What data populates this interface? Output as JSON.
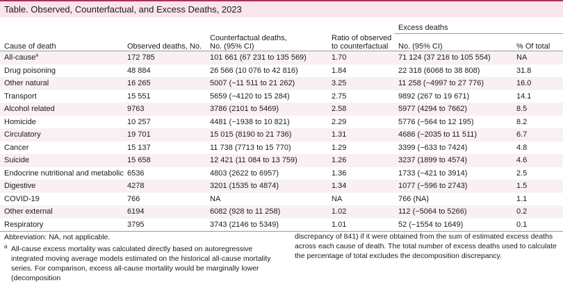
{
  "title": "Table. Observed, Counterfactual, and Excess Deaths, 2023",
  "headers": {
    "cause": "Cause of death",
    "observed": "Observed deaths, No.",
    "counterfactual_line1": "Counterfactual deaths,",
    "counterfactual_line2": "No. (95% CI)",
    "ratio_line1": "Ratio of observed",
    "ratio_line2": "to counterfactual",
    "excess_group": "Excess deaths",
    "excess_no": "No. (95% CI)",
    "excess_pct": "% Of total"
  },
  "rows": [
    {
      "cause": "All-cause",
      "sup": "a",
      "observed": "172 785",
      "counterfactual": "101 661 (67 231 to 135 569)",
      "ratio": "1.70",
      "excess": "71 124 (37 216 to 105 554)",
      "pct": "NA"
    },
    {
      "cause": "Drug poisoning",
      "observed": "48 884",
      "counterfactual": "26 566 (10 076 to 42 816)",
      "ratio": "1.84",
      "excess": "22 318 (6068 to 38 808)",
      "pct": "31.8"
    },
    {
      "cause": "Other natural",
      "observed": "16 265",
      "counterfactual": "5007 (−11 511 to 21 262)",
      "ratio": "3.25",
      "excess": "11 258 (−4997 to 27 776)",
      "pct": "16.0"
    },
    {
      "cause": "Transport",
      "observed": "15 551",
      "counterfactual": "5659 (−4120 to 15 284)",
      "ratio": "2.75",
      "excess": "9892 (267 to 19 671)",
      "pct": "14.1"
    },
    {
      "cause": "Alcohol related",
      "observed": "9763",
      "counterfactual": "3786 (2101 to 5469)",
      "ratio": "2.58",
      "excess": "5977 (4294 to 7662)",
      "pct": "8.5"
    },
    {
      "cause": "Homicide",
      "observed": "10 257",
      "counterfactual": "4481 (−1938 to 10 821)",
      "ratio": "2.29",
      "excess": "5776 (−564 to 12 195)",
      "pct": "8.2"
    },
    {
      "cause": "Circulatory",
      "observed": "19 701",
      "counterfactual": "15 015 (8190 to 21 736)",
      "ratio": "1.31",
      "excess": "4686 (−2035 to 11 511)",
      "pct": "6.7"
    },
    {
      "cause": "Cancer",
      "observed": "15 137",
      "counterfactual": "11 738 (7713 to 15 770)",
      "ratio": "1.29",
      "excess": "3399 (−633 to 7424)",
      "pct": "4.8"
    },
    {
      "cause": "Suicide",
      "observed": "15 658",
      "counterfactual": "12 421 (11 084 to 13 759)",
      "ratio": "1.26",
      "excess": "3237 (1899 to 4574)",
      "pct": "4.6"
    },
    {
      "cause": "Endocrine nutritional and metabolic",
      "observed": "6536",
      "counterfactual": "4803 (2622 to 6957)",
      "ratio": "1.36",
      "excess": "1733 (−421 to 3914)",
      "pct": "2.5"
    },
    {
      "cause": "Digestive",
      "observed": "4278",
      "counterfactual": "3201 (1535 to 4874)",
      "ratio": "1.34",
      "excess": "1077 (−596 to 2743)",
      "pct": "1.5"
    },
    {
      "cause": "COVID-19",
      "observed": "766",
      "counterfactual": "NA",
      "ratio": "NA",
      "excess": "766 (NA)",
      "pct": "1.1"
    },
    {
      "cause": "Other external",
      "observed": "6194",
      "counterfactual": "6082 (928 to 11 258)",
      "ratio": "1.02",
      "excess": "112 (−5064 to 5266)",
      "pct": "0.2"
    },
    {
      "cause": "Respiratory",
      "observed": "3795",
      "counterfactual": "3743 (2146 to 5349)",
      "ratio": "1.01",
      "excess": "52 (−1554 to 1649)",
      "pct": "0.1"
    }
  ],
  "abbreviation": "Abbreviation: NA, not applicable.",
  "footnote_mark": "a",
  "footnote_left": "All-cause excess mortality was calculated directly based on autoregressive integrated moving average models estimated on the historical all-cause mortality series. For comparison, excess all-cause mortality would be marginally lower (decomposition",
  "footnote_right": "discrepancy of 841) if it were obtained from the sum of estimated excess deaths across each cause of death. The total number of excess deaths used to calculate the percentage of total excludes the decomposition discrepancy.",
  "colors": {
    "accent": "#c0245a",
    "title_bg": "#fbe4ea",
    "stripe": "#f9f0f3"
  }
}
